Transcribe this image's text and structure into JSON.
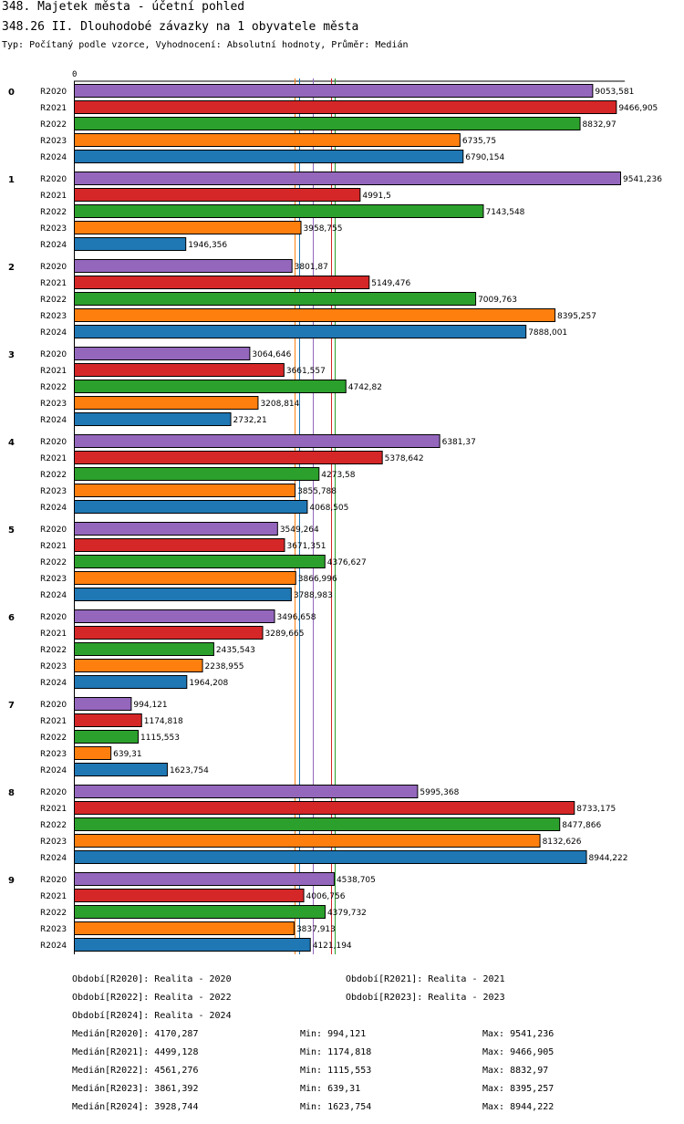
{
  "header": {
    "title": "348. Majetek města - účetní pohled",
    "subtitle": "348.26 II. Dlouhodobé závazky na 1 obyvatele města",
    "type_line": "Typ: Počítaný podle vzorce, Vyhodnocení: Absolutní hodnoty, Průměr: Medián"
  },
  "chart_data": {
    "type": "bar",
    "orientation": "horizontal",
    "axis_zero_label": "0",
    "xlim": [
      0,
      9541.236
    ],
    "categories": [
      "0",
      "1",
      "2",
      "3",
      "4",
      "5",
      "6",
      "7",
      "8",
      "9"
    ],
    "series": [
      {
        "name": "R2020",
        "color": "#9467bd",
        "values": [
          9053.581,
          9541.236,
          3801.87,
          3064.646,
          6381.37,
          3549.264,
          3496.658,
          994.121,
          5995.368,
          4538.705
        ],
        "labels": [
          "9053,581",
          "9541,236",
          "3801,87",
          "3064,646",
          "6381,37",
          "3549,264",
          "3496,658",
          "994,121",
          "5995,368",
          "4538,705"
        ]
      },
      {
        "name": "R2021",
        "color": "#d62728",
        "values": [
          9466.905,
          4991.5,
          5149.476,
          3661.557,
          5378.642,
          3671.351,
          3289.665,
          1174.818,
          8733.175,
          4006.756
        ],
        "labels": [
          "9466,905",
          "4991,5",
          "5149,476",
          "3661,557",
          "5378,642",
          "3671,351",
          "3289,665",
          "1174,818",
          "8733,175",
          "4006,756"
        ]
      },
      {
        "name": "R2022",
        "color": "#2ca02c",
        "values": [
          8832.97,
          7143.548,
          7009.763,
          4742.82,
          4273.58,
          4376.627,
          2435.543,
          1115.553,
          8477.866,
          4379.732
        ],
        "labels": [
          "8832,97",
          "7143,548",
          "7009,763",
          "4742,82",
          "4273,58",
          "4376,627",
          "2435,543",
          "1115,553",
          "8477,866",
          "4379,732"
        ]
      },
      {
        "name": "R2023",
        "color": "#ff7f0e",
        "values": [
          6735.75,
          3958.755,
          8395.257,
          3208.814,
          3855.788,
          3866.996,
          2238.955,
          639.31,
          8132.626,
          3837.913
        ],
        "labels": [
          "6735,75",
          "3958,755",
          "8395,257",
          "3208,814",
          "3855,788",
          "3866,996",
          "2238,955",
          "639,31",
          "8132,626",
          "3837,913"
        ]
      },
      {
        "name": "R2024",
        "color": "#1f77b4",
        "values": [
          6790.154,
          1946.356,
          7888.001,
          2732.21,
          4068.505,
          3788.983,
          1964.208,
          1623.754,
          8944.222,
          4121.194
        ],
        "labels": [
          "6790,154",
          "1946,356",
          "7888,001",
          "2732,21",
          "4068,505",
          "3788,983",
          "1964,208",
          "1623,754",
          "8944,222",
          "4121,194"
        ]
      }
    ],
    "median_lines": [
      {
        "series": "R2020",
        "value": 4170.287,
        "color": "#9467bd"
      },
      {
        "series": "R2021",
        "value": 4499.128,
        "color": "#d62728"
      },
      {
        "series": "R2022",
        "value": 4561.276,
        "color": "#2ca02c"
      },
      {
        "series": "R2023",
        "value": 3861.392,
        "color": "#ff7f0e"
      },
      {
        "series": "R2024",
        "value": 3928.744,
        "color": "#1f77b4"
      }
    ]
  },
  "legend": {
    "periods": [
      "Období[R2020]: Realita - 2020",
      "Období[R2021]: Realita - 2021",
      "Období[R2022]: Realita - 2022",
      "Období[R2023]: Realita - 2023",
      "Období[R2024]: Realita - 2024"
    ],
    "stats": [
      {
        "median": "Medián[R2020]: 4170,287",
        "min": "Min: 994,121",
        "max": "Max: 9541,236"
      },
      {
        "median": "Medián[R2021]: 4499,128",
        "min": "Min: 1174,818",
        "max": "Max: 9466,905"
      },
      {
        "median": "Medián[R2022]: 4561,276",
        "min": "Min: 1115,553",
        "max": "Max: 8832,97"
      },
      {
        "median": "Medián[R2023]: 3861,392",
        "min": "Min: 639,31",
        "max": "Max: 8395,257"
      },
      {
        "median": "Medián[R2024]: 3928,744",
        "min": "Min: 1623,754",
        "max": "Max: 8944,222"
      }
    ]
  }
}
